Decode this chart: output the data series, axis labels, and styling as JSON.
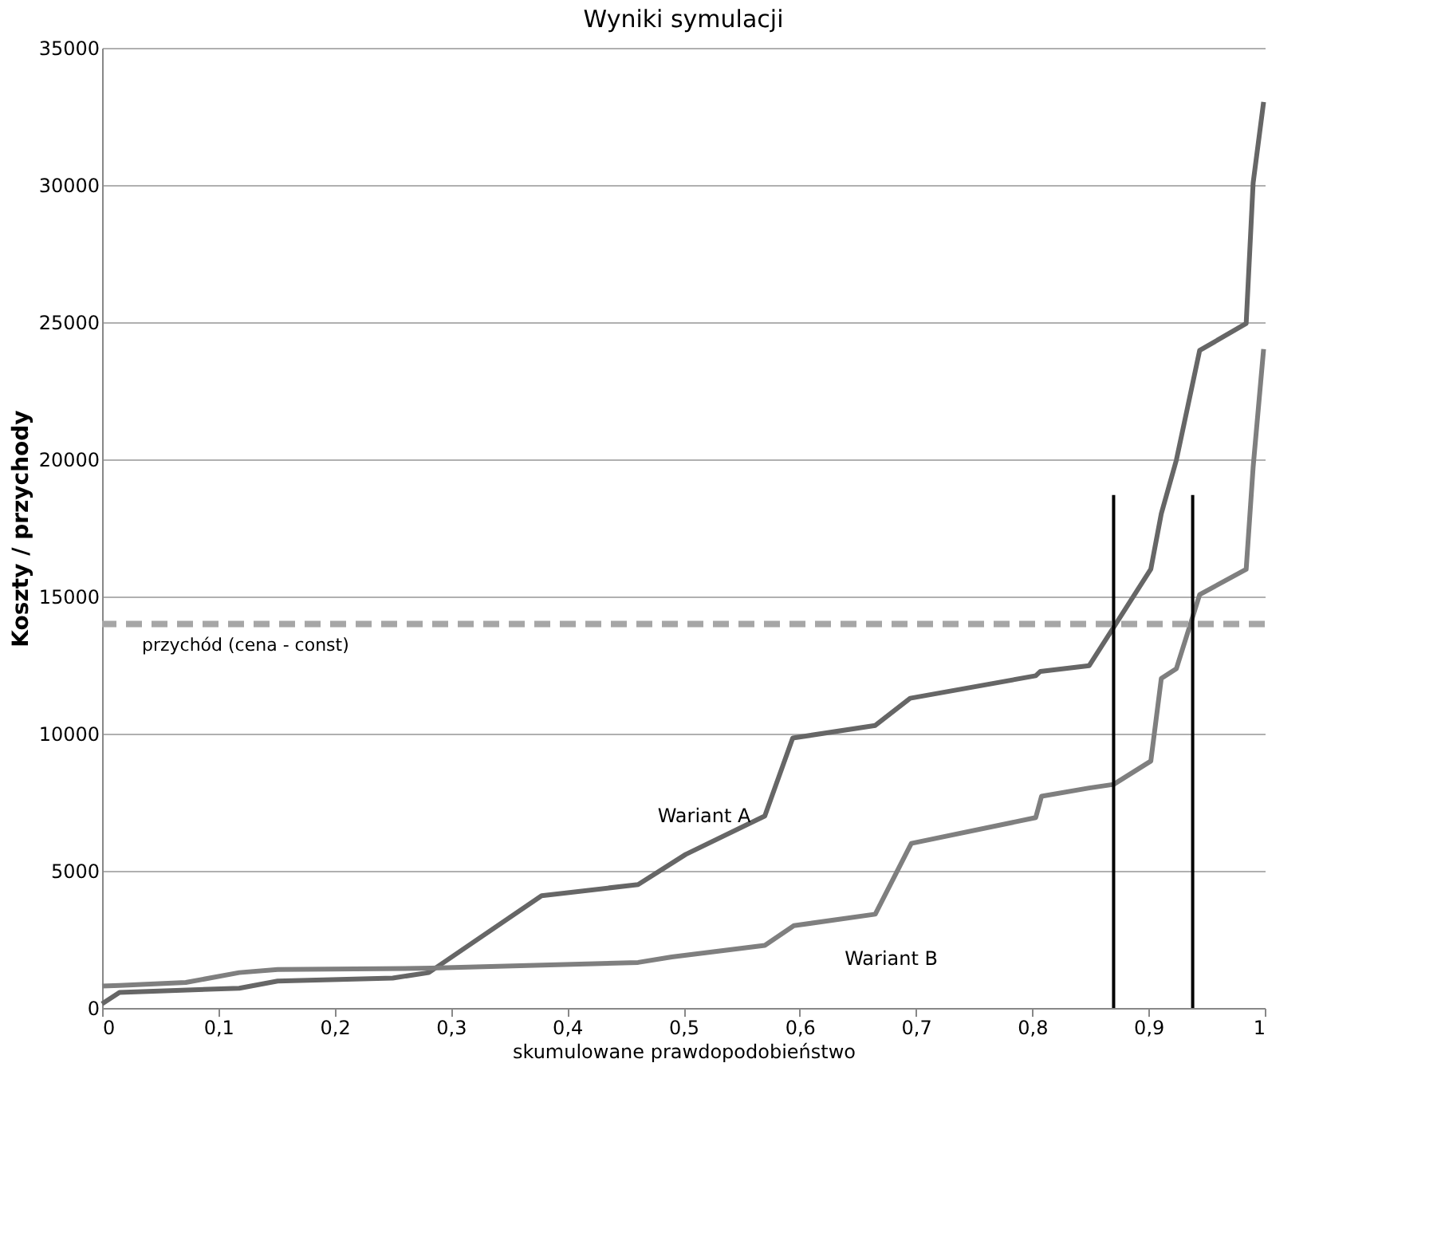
{
  "chart_data": {
    "type": "line",
    "title": "Wyniki symulacji",
    "xlabel": "skumulowane prawdopodobieństwo",
    "ylabel": "Koszty / przychody",
    "xlim": [
      0,
      1
    ],
    "ylim": [
      0,
      35000
    ],
    "xticks": [
      0,
      {
        "value": 0.1,
        "label": "0,1"
      },
      {
        "value": 0.2,
        "label": "0,2"
      },
      {
        "value": 0.3,
        "label": "0,3"
      },
      {
        "value": 0.4,
        "label": "0,4"
      },
      {
        "value": 0.5,
        "label": "0,5"
      },
      {
        "value": 0.6,
        "label": "0,6"
      },
      {
        "value": 0.7,
        "label": "0,7"
      },
      {
        "value": 0.8,
        "label": "0,8"
      },
      {
        "value": 0.9,
        "label": "0,9"
      },
      1
    ],
    "yticks": [
      0,
      5000,
      10000,
      15000,
      20000,
      25000,
      30000,
      35000
    ],
    "grid": "y",
    "marker": "none",
    "series": [
      {
        "name": "Wariant A",
        "color": "#666666",
        "line_style": "solid",
        "x": [
          0,
          0.015,
          0.118,
          0.151,
          0.25,
          0.281,
          0.378,
          0.461,
          0.502,
          0.57,
          0.594,
          0.665,
          0.695,
          0.803,
          0.807,
          0.849,
          0.902,
          0.911,
          0.924,
          0.944,
          0.984,
          0.99,
          0.999
        ],
        "values": [
          150,
          570,
          720,
          980,
          1090,
          1290,
          4090,
          4500,
          5600,
          7000,
          9840,
          10300,
          11290,
          12110,
          12270,
          12480,
          16000,
          18020,
          19980,
          23970,
          24950,
          30080,
          33030
        ]
      },
      {
        "name": "Wariant B",
        "color": "#7f7f7f",
        "line_style": "solid",
        "x": [
          0,
          0.015,
          0.072,
          0.118,
          0.151,
          0.283,
          0.461,
          0.49,
          0.57,
          0.595,
          0.665,
          0.696,
          0.803,
          0.808,
          0.849,
          0.87,
          0.902,
          0.911,
          0.924,
          0.944,
          0.984,
          0.99,
          0.999
        ],
        "values": [
          800,
          820,
          930,
          1290,
          1400,
          1450,
          1660,
          1860,
          2280,
          3000,
          3420,
          6000,
          6940,
          7720,
          8020,
          8150,
          9000,
          12010,
          12370,
          15070,
          15990,
          19720,
          24020
        ]
      },
      {
        "color": "#000000",
        "line_style": "solid",
        "x": [
          0.87,
          0.87
        ],
        "values": [
          0,
          18700
        ]
      },
      {
        "color": "#000000",
        "line_style": "solid",
        "x": [
          0.938,
          0.938
        ],
        "values": [
          0,
          18700
        ]
      }
    ],
    "ref_lines": [
      {
        "axis": "y",
        "value": 14000,
        "label": "przychód (cena - const)",
        "color": "#a6a6a6",
        "line_style": "dashed"
      }
    ]
  }
}
